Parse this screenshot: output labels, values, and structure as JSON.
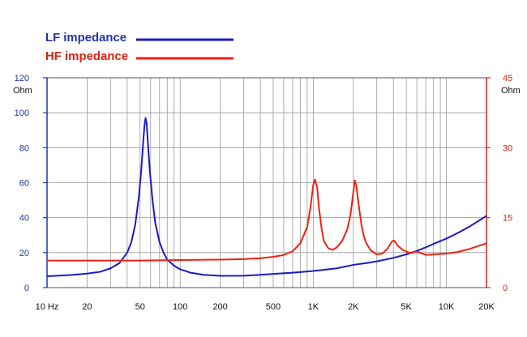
{
  "chart_data": {
    "type": "line",
    "x_scale": "log",
    "xlim": [
      10,
      20000
    ],
    "x_ticks": [
      {
        "value": 10,
        "label": "10 Hz"
      },
      {
        "value": 20,
        "label": "20"
      },
      {
        "value": 50,
        "label": "50"
      },
      {
        "value": 100,
        "label": "100"
      },
      {
        "value": 200,
        "label": "200"
      },
      {
        "value": 500,
        "label": "500"
      },
      {
        "value": 1000,
        "label": "1K"
      },
      {
        "value": 2000,
        "label": "2K"
      },
      {
        "value": 5000,
        "label": "5K"
      },
      {
        "value": 10000,
        "label": "10K"
      },
      {
        "value": 20000,
        "label": "20K"
      }
    ],
    "grid": true,
    "legend_position": "top-left",
    "y_left": {
      "unit": "Ohm",
      "ylim": [
        0,
        120
      ],
      "ticks": [
        0,
        20,
        40,
        60,
        80,
        100,
        120
      ],
      "color": "#2233aa"
    },
    "y_right": {
      "unit": "Ohm",
      "ylim": [
        0,
        45
      ],
      "ticks": [
        0,
        15,
        30,
        45
      ],
      "color": "#dd2211"
    },
    "series": [
      {
        "name": "LF impedance",
        "color": "#1a1acc",
        "axis": "left",
        "points": [
          [
            10,
            6.5
          ],
          [
            15,
            7.2
          ],
          [
            20,
            8.0
          ],
          [
            25,
            9.0
          ],
          [
            30,
            11
          ],
          [
            35,
            14
          ],
          [
            40,
            20
          ],
          [
            43,
            26
          ],
          [
            46,
            36
          ],
          [
            49,
            52
          ],
          [
            51,
            67
          ],
          [
            53,
            85
          ],
          [
            54,
            93
          ],
          [
            55,
            97
          ],
          [
            56,
            94
          ],
          [
            57,
            85
          ],
          [
            59,
            68
          ],
          [
            62,
            50
          ],
          [
            65,
            37
          ],
          [
            70,
            26
          ],
          [
            75,
            20
          ],
          [
            80,
            16
          ],
          [
            90,
            12.5
          ],
          [
            100,
            10.5
          ],
          [
            120,
            8.5
          ],
          [
            150,
            7.3
          ],
          [
            200,
            6.7
          ],
          [
            300,
            6.8
          ],
          [
            400,
            7.3
          ],
          [
            500,
            7.8
          ],
          [
            700,
            8.5
          ],
          [
            1000,
            9.5
          ],
          [
            1500,
            11
          ],
          [
            2000,
            13
          ],
          [
            2500,
            14
          ],
          [
            3000,
            15
          ],
          [
            4000,
            17
          ],
          [
            5000,
            19
          ],
          [
            6000,
            21
          ],
          [
            7000,
            23
          ],
          [
            8000,
            25
          ],
          [
            10000,
            28
          ],
          [
            12000,
            31
          ],
          [
            15000,
            35
          ],
          [
            20000,
            41
          ]
        ]
      },
      {
        "name": "HF impedance",
        "color": "#ee2211",
        "axis": "right",
        "points": [
          [
            10,
            5.8
          ],
          [
            50,
            5.8
          ],
          [
            100,
            5.9
          ],
          [
            200,
            6.0
          ],
          [
            300,
            6.1
          ],
          [
            400,
            6.3
          ],
          [
            500,
            6.6
          ],
          [
            600,
            7.0
          ],
          [
            700,
            7.8
          ],
          [
            800,
            9.5
          ],
          [
            900,
            13.0
          ],
          [
            950,
            17.0
          ],
          [
            1000,
            22.0
          ],
          [
            1030,
            23.2
          ],
          [
            1070,
            21.5
          ],
          [
            1100,
            17.5
          ],
          [
            1150,
            13.0
          ],
          [
            1200,
            10.0
          ],
          [
            1300,
            8.4
          ],
          [
            1400,
            8.1
          ],
          [
            1500,
            8.6
          ],
          [
            1650,
            10.0
          ],
          [
            1800,
            12.5
          ],
          [
            1900,
            15.5
          ],
          [
            2000,
            20.5
          ],
          [
            2050,
            23.0
          ],
          [
            2100,
            22.0
          ],
          [
            2200,
            17.5
          ],
          [
            2300,
            13.5
          ],
          [
            2400,
            11.0
          ],
          [
            2500,
            9.5
          ],
          [
            2700,
            8.0
          ],
          [
            3000,
            7.1
          ],
          [
            3300,
            7.3
          ],
          [
            3600,
            8.3
          ],
          [
            3900,
            9.9
          ],
          [
            4050,
            10.1
          ],
          [
            4300,
            9.0
          ],
          [
            4700,
            8.1
          ],
          [
            5200,
            7.5
          ],
          [
            5500,
            7.4
          ],
          [
            5800,
            7.7
          ],
          [
            6200,
            7.6
          ],
          [
            7000,
            7.0
          ],
          [
            8000,
            7.1
          ],
          [
            9000,
            7.2
          ],
          [
            10000,
            7.3
          ],
          [
            12000,
            7.6
          ],
          [
            15000,
            8.3
          ],
          [
            20000,
            9.5
          ]
        ]
      }
    ]
  }
}
